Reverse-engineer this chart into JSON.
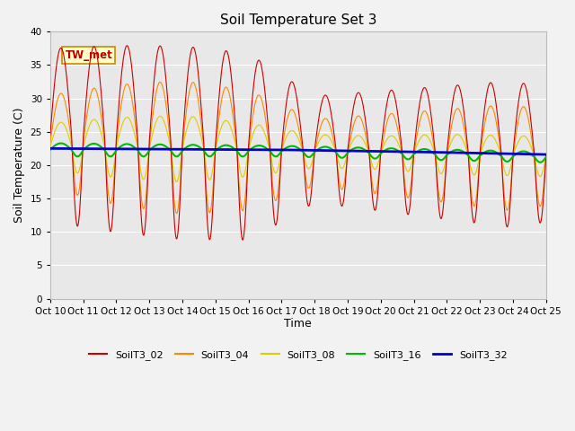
{
  "title": "Soil Temperature Set 3",
  "xlabel": "Time",
  "ylabel": "Soil Temperature (C)",
  "xlim": [
    0,
    15
  ],
  "ylim": [
    0,
    40
  ],
  "yticks": [
    0,
    5,
    10,
    15,
    20,
    25,
    30,
    35,
    40
  ],
  "xtick_positions": [
    0,
    1,
    2,
    3,
    4,
    5,
    6,
    7,
    8,
    9,
    10,
    11,
    12,
    13,
    14,
    15
  ],
  "xtick_labels": [
    "Oct 10",
    "Oct 11",
    "Oct 12",
    "Oct 13",
    "Oct 14",
    "Oct 15",
    "Oct 16",
    "Oct 17",
    "Oct 18",
    "Oct 19",
    "Oct 20",
    "Oct 21",
    "Oct 22",
    "Oct 23",
    "Oct 24",
    "Oct 25"
  ],
  "series_colors": {
    "SoilT3_02": "#cc0000",
    "SoilT3_04": "#ff8800",
    "SoilT3_08": "#ddcc00",
    "SoilT3_16": "#00bb00",
    "SoilT3_32": "#0000cc"
  },
  "annotation_text": "TW_met",
  "fig_bg_color": "#f2f2f2",
  "plot_bg_color": "#e8e8e8"
}
